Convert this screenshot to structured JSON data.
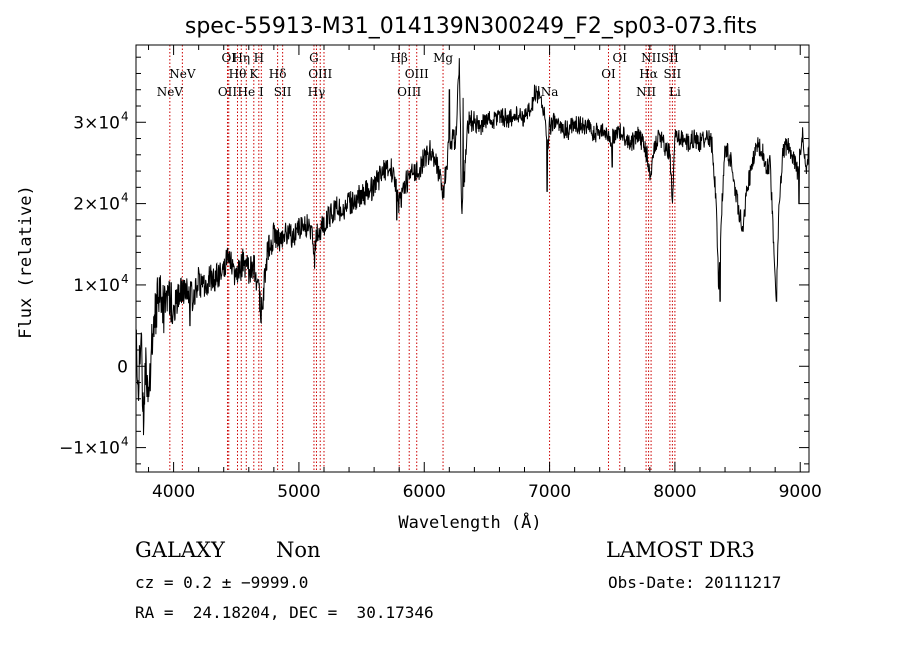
{
  "chart_data": {
    "type": "line",
    "title": "spec-55913-M31_014139N300249_F2_sp03-073.fits",
    "xlabel": "Wavelength (Å)",
    "ylabel": "Flux (relative)",
    "xlim": [
      3700,
      9070
    ],
    "ylim": [
      -13000,
      39500
    ],
    "x_ticks": [
      4000,
      5000,
      6000,
      7000,
      8000,
      9000
    ],
    "y_ticks": [
      {
        "value": -10000,
        "mant": "−1×10",
        "exp": "4"
      },
      {
        "value": 0,
        "mant": "0",
        "exp": ""
      },
      {
        "value": 10000,
        "mant": "1×10",
        "exp": "4"
      },
      {
        "value": 20000,
        "mant": "2×10",
        "exp": "4"
      },
      {
        "value": 30000,
        "mant": "3×10",
        "exp": "4"
      }
    ],
    "line_markers": [
      {
        "wavelength": 3970,
        "label": "NeV",
        "row": 3
      },
      {
        "wavelength": 4070,
        "label": "NeV",
        "row": 2
      },
      {
        "wavelength": 4430,
        "label": "OII",
        "row": 3
      },
      {
        "wavelength": 4440,
        "label": "OI",
        "row": 1
      },
      {
        "wavelength": 4510,
        "label": "Hθ",
        "row": 2
      },
      {
        "wavelength": 4540,
        "label": "Hη",
        "row": 1
      },
      {
        "wavelength": 4580,
        "label": "He",
        "row": 3
      },
      {
        "wavelength": 4640,
        "label": "K",
        "row": 2
      },
      {
        "wavelength": 4680,
        "label": "H",
        "row": 1
      },
      {
        "wavelength": 4700,
        "label": "I",
        "row": 3
      },
      {
        "wavelength": 4830,
        "label": "Hδ",
        "row": 2
      },
      {
        "wavelength": 4870,
        "label": "SII",
        "row": 3
      },
      {
        "wavelength": 5120,
        "label": "G",
        "row": 1
      },
      {
        "wavelength": 5140,
        "label": "Hγ",
        "row": 3
      },
      {
        "wavelength": 5170,
        "label": "OIII",
        "row": 2
      },
      {
        "wavelength": 5200,
        "label": "",
        "row": 0
      },
      {
        "wavelength": 5800,
        "label": "Hβ",
        "row": 1
      },
      {
        "wavelength": 5880,
        "label": "OIII",
        "row": 3
      },
      {
        "wavelength": 5940,
        "label": "OIII",
        "row": 2
      },
      {
        "wavelength": 6150,
        "label": "Mg",
        "row": 1
      },
      {
        "wavelength": 7000,
        "label": "Na",
        "row": 3
      },
      {
        "wavelength": 7470,
        "label": "OI",
        "row": 2
      },
      {
        "wavelength": 7560,
        "label": "OI",
        "row": 1
      },
      {
        "wavelength": 7770,
        "label": "NII",
        "row": 3
      },
      {
        "wavelength": 7790,
        "label": "Hα",
        "row": 2
      },
      {
        "wavelength": 7810,
        "label": "NII",
        "row": 1
      },
      {
        "wavelength": 7960,
        "label": "SII",
        "row": 1
      },
      {
        "wavelength": 7980,
        "label": "SII",
        "row": 2
      },
      {
        "wavelength": 8000,
        "label": "Li",
        "row": 3
      }
    ],
    "anchors": [
      [
        3700,
        3000
      ],
      [
        3720,
        -2000
      ],
      [
        3740,
        5000
      ],
      [
        3760,
        -8000
      ],
      [
        3780,
        1000
      ],
      [
        3800,
        -5000
      ],
      [
        3820,
        2000
      ],
      [
        3850,
        6000
      ],
      [
        3880,
        9000
      ],
      [
        3920,
        7000
      ],
      [
        3960,
        8500
      ],
      [
        4000,
        7000
      ],
      [
        4050,
        9000
      ],
      [
        4100,
        9500
      ],
      [
        4150,
        8500
      ],
      [
        4200,
        10500
      ],
      [
        4250,
        9500
      ],
      [
        4300,
        11000
      ],
      [
        4350,
        11000
      ],
      [
        4400,
        12500
      ],
      [
        4440,
        13500
      ],
      [
        4470,
        12000
      ],
      [
        4500,
        10500
      ],
      [
        4530,
        12000
      ],
      [
        4560,
        13000
      ],
      [
        4600,
        11500
      ],
      [
        4640,
        12500
      ],
      [
        4680,
        9000
      ],
      [
        4700,
        6500
      ],
      [
        4720,
        9500
      ],
      [
        4750,
        14500
      ],
      [
        4800,
        16000
      ],
      [
        4850,
        15500
      ],
      [
        4900,
        16500
      ],
      [
        4950,
        16000
      ],
      [
        5000,
        17000
      ],
      [
        5050,
        17500
      ],
      [
        5100,
        16500
      ],
      [
        5120,
        14500
      ],
      [
        5150,
        16500
      ],
      [
        5200,
        17500
      ],
      [
        5250,
        18500
      ],
      [
        5300,
        19500
      ],
      [
        5350,
        19000
      ],
      [
        5400,
        20000
      ],
      [
        5450,
        20500
      ],
      [
        5500,
        21000
      ],
      [
        5550,
        21500
      ],
      [
        5600,
        22000
      ],
      [
        5650,
        23500
      ],
      [
        5700,
        24500
      ],
      [
        5750,
        24000
      ],
      [
        5800,
        20000
      ],
      [
        5850,
        22500
      ],
      [
        5900,
        23500
      ],
      [
        5950,
        24000
      ],
      [
        6000,
        25500
      ],
      [
        6050,
        26500
      ],
      [
        6100,
        25000
      ],
      [
        6150,
        21000
      ],
      [
        6200,
        27500
      ],
      [
        6250,
        28000
      ],
      [
        6280,
        37000
      ],
      [
        6300,
        18000
      ],
      [
        6350,
        30000
      ],
      [
        6400,
        30000
      ],
      [
        6450,
        29500
      ],
      [
        6500,
        30500
      ],
      [
        6550,
        30000
      ],
      [
        6600,
        31000
      ],
      [
        6650,
        30500
      ],
      [
        6700,
        30500
      ],
      [
        6750,
        31000
      ],
      [
        6800,
        30500
      ],
      [
        6850,
        31500
      ],
      [
        6880,
        33500
      ],
      [
        6920,
        33500
      ],
      [
        6960,
        31000
      ],
      [
        6990,
        27000
      ],
      [
        7000,
        29500
      ],
      [
        7030,
        30000
      ],
      [
        7080,
        29500
      ],
      [
        7150,
        29000
      ],
      [
        7200,
        30000
      ],
      [
        7250,
        29500
      ],
      [
        7300,
        29500
      ],
      [
        7350,
        28500
      ],
      [
        7400,
        29000
      ],
      [
        7450,
        28500
      ],
      [
        7500,
        28000
      ],
      [
        7540,
        29000
      ],
      [
        7580,
        28500
      ],
      [
        7620,
        28000
      ],
      [
        7660,
        27500
      ],
      [
        7700,
        28500
      ],
      [
        7740,
        27500
      ],
      [
        7780,
        26000
      ],
      [
        7800,
        23000
      ],
      [
        7830,
        26500
      ],
      [
        7870,
        28500
      ],
      [
        7920,
        27000
      ],
      [
        7960,
        26000
      ],
      [
        7980,
        20000
      ],
      [
        8000,
        28000
      ],
      [
        8050,
        28000
      ],
      [
        8100,
        27500
      ],
      [
        8150,
        28000
      ],
      [
        8200,
        27500
      ],
      [
        8260,
        28500
      ],
      [
        8300,
        27000
      ],
      [
        8330,
        20000
      ],
      [
        8350,
        9000
      ],
      [
        8370,
        18000
      ],
      [
        8400,
        27000
      ],
      [
        8450,
        25000
      ],
      [
        8500,
        20000
      ],
      [
        8540,
        17000
      ],
      [
        8580,
        22000
      ],
      [
        8620,
        25000
      ],
      [
        8660,
        27000
      ],
      [
        8700,
        26500
      ],
      [
        8730,
        24500
      ],
      [
        8760,
        25000
      ],
      [
        8790,
        14500
      ],
      [
        8810,
        8500
      ],
      [
        8830,
        19000
      ],
      [
        8860,
        26000
      ],
      [
        8900,
        27500
      ],
      [
        8940,
        25500
      ],
      [
        8980,
        24000
      ],
      [
        9020,
        28500
      ],
      [
        9050,
        24500
      ],
      [
        9070,
        27000
      ]
    ],
    "spikes": [
      [
        4130,
        5000
      ],
      [
        4430,
        14500
      ],
      [
        4710,
        7000
      ],
      [
        5125,
        12000
      ],
      [
        5780,
        18000
      ],
      [
        6200,
        34000
      ],
      [
        6310,
        33000
      ],
      [
        6980,
        21500
      ],
      [
        7500,
        24500
      ],
      [
        8360,
        8000
      ],
      [
        8810,
        8000
      ],
      [
        8990,
        20000
      ]
    ],
    "series": [
      {
        "name": "",
        "color": "#000000"
      }
    ],
    "marker_color": "#cc0000",
    "grid": false
  },
  "info": {
    "object_class": "GALAXY",
    "subclass": "Non",
    "redshift": "cz = 0.2 ± −9999.0",
    "coords": "RA =  24.18204, DEC =  30.17346",
    "survey": "LAMOST DR3",
    "obs_date": "Obs-Date: 20111217"
  }
}
